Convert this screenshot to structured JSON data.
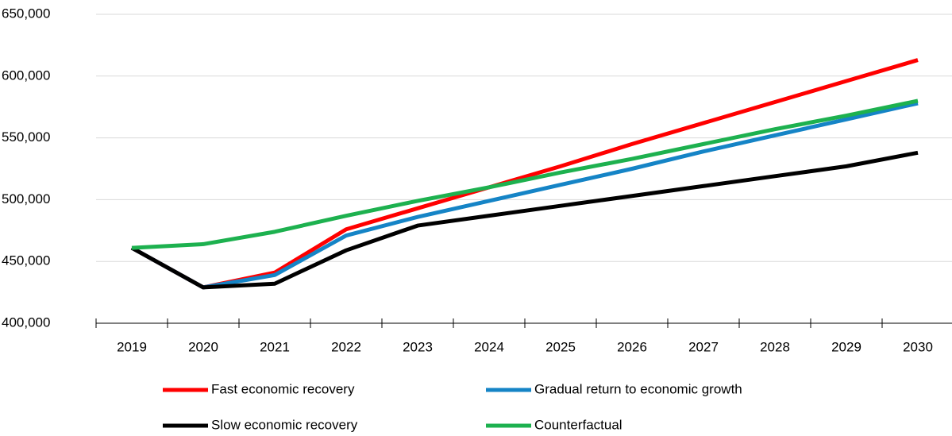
{
  "chart_data": {
    "type": "line",
    "categories": [
      "2019",
      "2020",
      "2021",
      "2022",
      "2023",
      "2024",
      "2025",
      "2026",
      "2027",
      "2028",
      "2029",
      "2030"
    ],
    "series": [
      {
        "name": "Fast economic recovery",
        "color": "#ff0000",
        "values": [
          461000,
          429000,
          441000,
          476000,
          493000,
          510000,
          527000,
          545000,
          562000,
          579000,
          596000,
          613000
        ]
      },
      {
        "name": "Gradual return to economic growth",
        "color": "#1584c6",
        "values": [
          461000,
          429000,
          439000,
          471000,
          486000,
          499000,
          512000,
          525000,
          539000,
          552000,
          565000,
          578000
        ]
      },
      {
        "name": "Slow economic recovery",
        "color": "#000000",
        "values": [
          461000,
          429000,
          432000,
          459000,
          479000,
          487000,
          495000,
          503000,
          511000,
          519000,
          527000,
          538000
        ]
      },
      {
        "name": "Counterfactual",
        "color": "#1db14f",
        "values": [
          461000,
          464000,
          474000,
          487000,
          499000,
          510000,
          522000,
          533000,
          545000,
          557000,
          568000,
          580000
        ]
      }
    ],
    "ylim": [
      400000,
      650000
    ],
    "yticks": [
      {
        "value": 400000,
        "label": "400,000"
      },
      {
        "value": 450000,
        "label": "450,000"
      },
      {
        "value": 500000,
        "label": "500,000"
      },
      {
        "value": 550000,
        "label": "550,000"
      },
      {
        "value": 600000,
        "label": "600,000"
      },
      {
        "value": 650000,
        "label": "650,000"
      }
    ],
    "grid": true,
    "legend": "bottom"
  }
}
